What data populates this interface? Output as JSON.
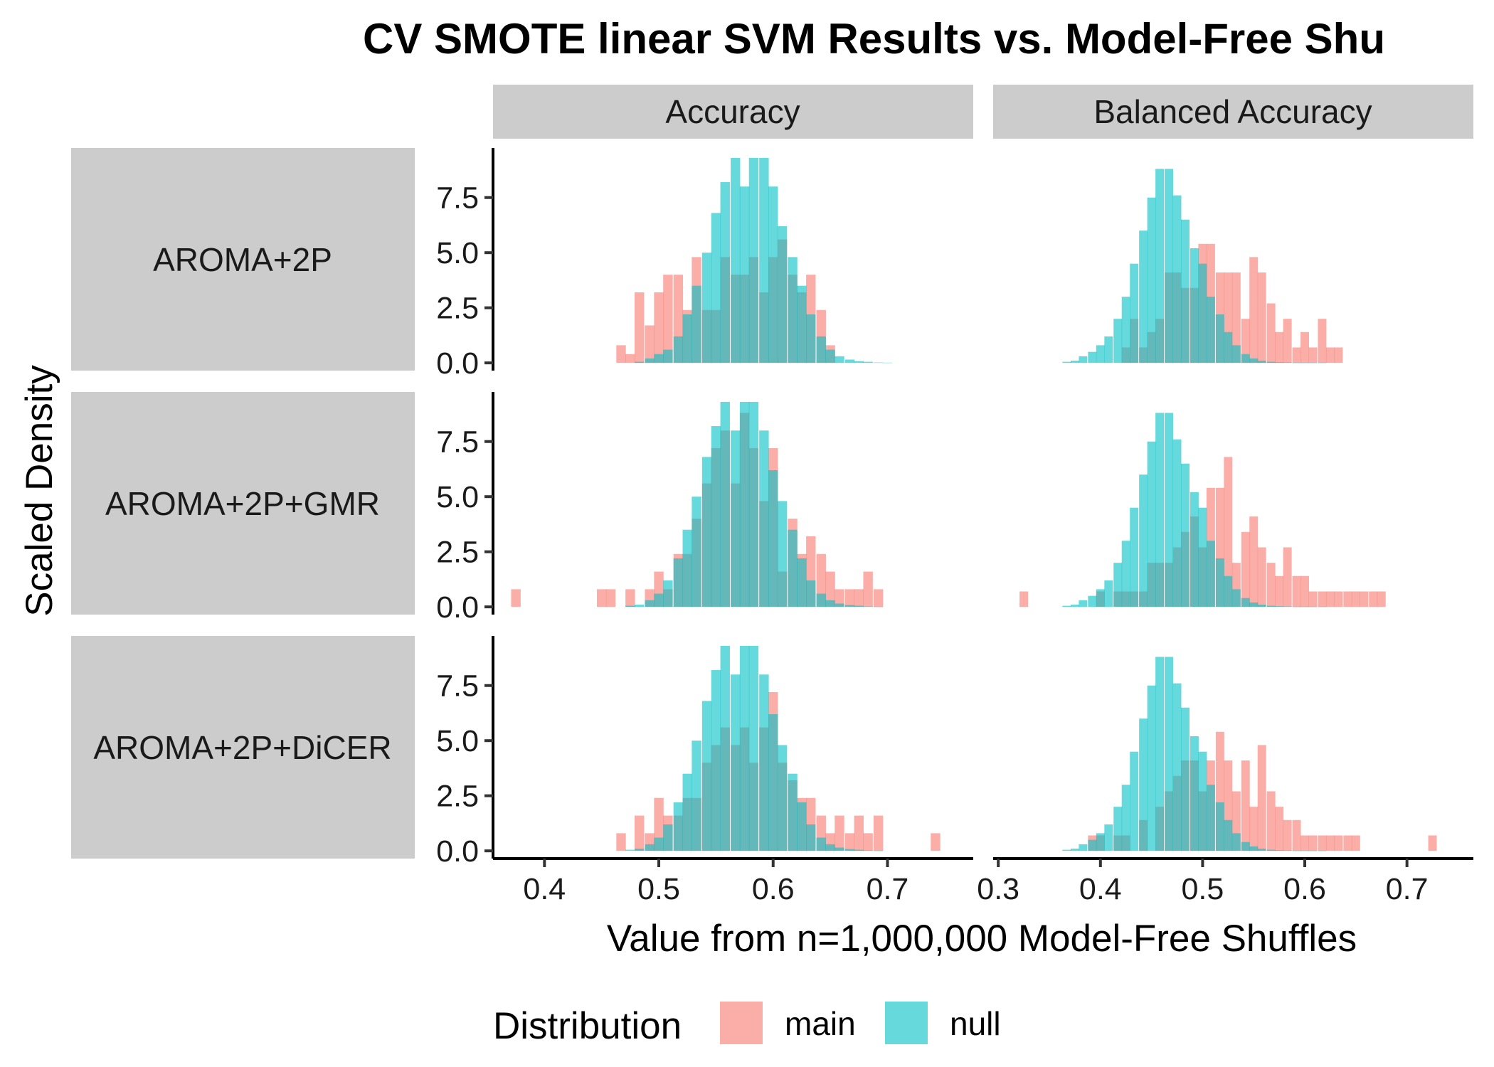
{
  "chart_data": {
    "type": "bar",
    "title": "CV SMOTE linear SVM Results vs. Model-Free Shu",
    "xlabel": "Value from n=1,000,000 Model-Free Shuffles",
    "ylabel": "Scaled Density",
    "legend": {
      "title": "Distribution",
      "position": "bottom",
      "entries": [
        {
          "name": "main",
          "color": "#F8766D"
        },
        {
          "name": "null",
          "color": "#00BFC4"
        }
      ]
    },
    "columns": [
      "Accuracy",
      "Balanced Accuracy"
    ],
    "rows": [
      "AROMA+2P",
      "AROMA+2P+GMR",
      "AROMA+2P+DiCER"
    ],
    "ylim": [
      -0.35,
      9.75
    ],
    "yticks": [
      0.0,
      2.5,
      5.0,
      7.5
    ],
    "ytick_labels": [
      "0.0",
      "2.5",
      "5.0",
      "7.5"
    ],
    "grid": false,
    "bin_width": 0.00833,
    "fill_opacity": 0.6,
    "panels": [
      {
        "row": "AROMA+2P",
        "column": "Accuracy",
        "xlim": [
          0.355,
          0.775
        ],
        "xticks": [
          0.4,
          0.5,
          0.6,
          0.7
        ],
        "xtick_labels": [
          "0.4",
          "0.5",
          "0.6",
          "0.7"
        ],
        "series": [
          {
            "name": "main",
            "x": [
              0.467,
              0.475,
              0.483,
              0.492,
              0.5,
              0.508,
              0.517,
              0.525,
              0.533,
              0.542,
              0.55,
              0.558,
              0.567,
              0.575,
              0.583,
              0.592,
              0.6,
              0.608,
              0.617,
              0.625,
              0.633,
              0.642,
              0.65
            ],
            "values": [
              0.8,
              0.4,
              3.2,
              1.7,
              3.2,
              4.0,
              4.0,
              2.4,
              4.8,
              2.4,
              2.4,
              4.8,
              4.0,
              4.0,
              4.8,
              3.2,
              4.8,
              5.6,
              4.0,
              3.2,
              4.0,
              2.4,
              0.8
            ]
          },
          {
            "name": "null",
            "x": [
              0.483,
              0.492,
              0.5,
              0.508,
              0.517,
              0.525,
              0.533,
              0.542,
              0.55,
              0.558,
              0.567,
              0.575,
              0.583,
              0.592,
              0.6,
              0.608,
              0.617,
              0.625,
              0.633,
              0.642,
              0.65,
              0.658,
              0.667,
              0.675,
              0.683,
              0.692,
              0.7
            ],
            "values": [
              0.05,
              0.2,
              0.4,
              0.6,
              1.2,
              2.2,
              3.5,
              5.0,
              6.8,
              8.2,
              9.3,
              8.0,
              9.3,
              9.3,
              8.0,
              6.2,
              4.8,
              3.5,
              2.2,
              1.2,
              0.6,
              0.3,
              0.15,
              0.08,
              0.05,
              0.02,
              0.01
            ]
          }
        ]
      },
      {
        "row": "AROMA+2P",
        "column": "Balanced Accuracy",
        "xlim": [
          0.295,
          0.765
        ],
        "xticks": [
          0.3,
          0.4,
          0.5,
          0.6,
          0.7
        ],
        "xtick_labels": [
          "0.3",
          "0.4",
          "0.5",
          "0.6",
          "0.7"
        ],
        "series": [
          {
            "name": "main",
            "x": [
              0.425,
              0.433,
              0.442,
              0.45,
              0.458,
              0.467,
              0.475,
              0.483,
              0.492,
              0.5,
              0.508,
              0.517,
              0.525,
              0.533,
              0.542,
              0.55,
              0.558,
              0.567,
              0.575,
              0.583,
              0.592,
              0.6,
              0.608,
              0.617,
              0.625,
              0.633
            ],
            "values": [
              0.7,
              2.0,
              0.7,
              1.4,
              2.0,
              4.1,
              4.1,
              3.4,
              3.4,
              5.4,
              5.4,
              4.1,
              4.1,
              4.1,
              2.0,
              4.8,
              4.1,
              2.7,
              1.4,
              2.0,
              0.7,
              1.4,
              0.7,
              2.0,
              0.7,
              0.7
            ]
          },
          {
            "name": "null",
            "x": [
              0.367,
              0.375,
              0.383,
              0.392,
              0.4,
              0.408,
              0.417,
              0.425,
              0.433,
              0.442,
              0.45,
              0.458,
              0.467,
              0.475,
              0.483,
              0.492,
              0.5,
              0.508,
              0.517,
              0.525,
              0.533,
              0.542,
              0.55,
              0.558,
              0.567,
              0.575,
              0.583,
              0.592,
              0.6,
              0.608,
              0.617
            ],
            "values": [
              0.05,
              0.1,
              0.3,
              0.5,
              0.8,
              1.2,
              2.0,
              3.0,
              4.5,
              6.0,
              7.5,
              8.8,
              8.8,
              7.6,
              6.5,
              5.2,
              4.5,
              3.0,
              2.2,
              1.4,
              0.8,
              0.4,
              0.2,
              0.1,
              0.05,
              0.03,
              0.02,
              0.01,
              0.01,
              0.01,
              0.01
            ]
          }
        ]
      },
      {
        "row": "AROMA+2P+GMR",
        "column": "Accuracy",
        "xlim": [
          0.355,
          0.775
        ],
        "xticks": [
          0.4,
          0.5,
          0.6,
          0.7
        ],
        "xtick_labels": [
          "0.4",
          "0.5",
          "0.6",
          "0.7"
        ],
        "series": [
          {
            "name": "main",
            "x": [
              0.375,
              0.45,
              0.458,
              0.475,
              0.492,
              0.5,
              0.508,
              0.517,
              0.525,
              0.533,
              0.542,
              0.55,
              0.558,
              0.567,
              0.575,
              0.583,
              0.592,
              0.6,
              0.608,
              0.617,
              0.625,
              0.633,
              0.642,
              0.65,
              0.658,
              0.667,
              0.675,
              0.683,
              0.692
            ],
            "values": [
              0.8,
              0.8,
              0.8,
              0.8,
              0.8,
              1.6,
              0.8,
              2.4,
              2.4,
              4.0,
              5.6,
              7.2,
              8.0,
              5.6,
              8.8,
              7.2,
              4.8,
              7.2,
              1.6,
              4.0,
              2.4,
              3.2,
              2.4,
              1.6,
              0.8,
              0.8,
              0.8,
              1.6,
              0.8
            ]
          },
          {
            "name": "null",
            "x": [
              0.475,
              0.483,
              0.492,
              0.5,
              0.508,
              0.517,
              0.525,
              0.533,
              0.542,
              0.55,
              0.558,
              0.567,
              0.575,
              0.583,
              0.592,
              0.6,
              0.608,
              0.617,
              0.625,
              0.633,
              0.642,
              0.65,
              0.658,
              0.667,
              0.675,
              0.683,
              0.692
            ],
            "values": [
              0.05,
              0.1,
              0.3,
              0.6,
              1.2,
              2.2,
              3.5,
              5.0,
              6.8,
              8.2,
              9.3,
              8.0,
              9.3,
              9.3,
              8.0,
              6.2,
              4.8,
              3.5,
              2.2,
              1.2,
              0.6,
              0.3,
              0.15,
              0.08,
              0.05,
              0.02,
              0.01
            ]
          }
        ]
      },
      {
        "row": "AROMA+2P+GMR",
        "column": "Balanced Accuracy",
        "xlim": [
          0.295,
          0.765
        ],
        "xticks": [
          0.3,
          0.4,
          0.5,
          0.6,
          0.7
        ],
        "xtick_labels": [
          "0.3",
          "0.4",
          "0.5",
          "0.6",
          "0.7"
        ],
        "series": [
          {
            "name": "main",
            "x": [
              0.325,
              0.4,
              0.417,
              0.425,
              0.433,
              0.442,
              0.45,
              0.458,
              0.467,
              0.475,
              0.483,
              0.492,
              0.5,
              0.508,
              0.517,
              0.525,
              0.533,
              0.542,
              0.55,
              0.558,
              0.567,
              0.575,
              0.583,
              0.592,
              0.6,
              0.608,
              0.617,
              0.625,
              0.633,
              0.642,
              0.65,
              0.658,
              0.667,
              0.675
            ],
            "values": [
              0.7,
              0.7,
              0.7,
              0.7,
              0.7,
              0.7,
              2.0,
              2.0,
              2.0,
              2.7,
              3.4,
              4.1,
              2.7,
              5.4,
              5.4,
              6.8,
              2.0,
              3.4,
              4.1,
              2.7,
              2.0,
              1.4,
              2.7,
              1.4,
              1.4,
              0.7,
              0.7,
              0.7,
              0.7,
              0.7,
              0.7,
              0.7,
              0.7,
              0.7
            ]
          },
          {
            "name": "null",
            "x": [
              0.367,
              0.375,
              0.383,
              0.392,
              0.4,
              0.408,
              0.417,
              0.425,
              0.433,
              0.442,
              0.45,
              0.458,
              0.467,
              0.475,
              0.483,
              0.492,
              0.5,
              0.508,
              0.517,
              0.525,
              0.533,
              0.542,
              0.55,
              0.558,
              0.567,
              0.575,
              0.583,
              0.592,
              0.6,
              0.608,
              0.617
            ],
            "values": [
              0.05,
              0.1,
              0.3,
              0.5,
              0.8,
              1.2,
              2.0,
              3.0,
              4.5,
              6.0,
              7.5,
              8.8,
              8.8,
              7.6,
              6.5,
              5.2,
              4.5,
              3.0,
              2.2,
              1.4,
              0.8,
              0.4,
              0.2,
              0.1,
              0.05,
              0.03,
              0.02,
              0.01,
              0.01,
              0.01,
              0.01
            ]
          }
        ]
      },
      {
        "row": "AROMA+2P+DiCER",
        "column": "Accuracy",
        "xlim": [
          0.355,
          0.775
        ],
        "xticks": [
          0.4,
          0.5,
          0.6,
          0.7
        ],
        "xtick_labels": [
          "0.4",
          "0.5",
          "0.6",
          "0.7"
        ],
        "series": [
          {
            "name": "main",
            "x": [
              0.467,
              0.483,
              0.492,
              0.5,
              0.508,
              0.517,
              0.525,
              0.533,
              0.542,
              0.55,
              0.558,
              0.567,
              0.575,
              0.583,
              0.592,
              0.6,
              0.608,
              0.617,
              0.625,
              0.633,
              0.642,
              0.65,
              0.658,
              0.667,
              0.675,
              0.683,
              0.692,
              0.742
            ],
            "values": [
              0.8,
              1.6,
              0.8,
              2.4,
              1.6,
              1.6,
              2.4,
              2.4,
              4.0,
              4.8,
              5.6,
              4.8,
              5.6,
              4.0,
              5.6,
              7.2,
              4.0,
              3.2,
              2.4,
              2.4,
              1.6,
              0.8,
              1.6,
              0.8,
              1.6,
              0.8,
              1.6,
              0.8
            ]
          },
          {
            "name": "null",
            "x": [
              0.475,
              0.483,
              0.492,
              0.5,
              0.508,
              0.517,
              0.525,
              0.533,
              0.542,
              0.55,
              0.558,
              0.567,
              0.575,
              0.583,
              0.592,
              0.6,
              0.608,
              0.617,
              0.625,
              0.633,
              0.642,
              0.65,
              0.658,
              0.667,
              0.675,
              0.683,
              0.692
            ],
            "values": [
              0.05,
              0.1,
              0.3,
              0.6,
              1.2,
              2.2,
              3.5,
              5.0,
              6.8,
              8.2,
              9.3,
              8.0,
              9.3,
              9.3,
              8.0,
              6.2,
              4.8,
              3.5,
              2.2,
              1.2,
              0.6,
              0.3,
              0.15,
              0.08,
              0.05,
              0.02,
              0.01
            ]
          }
        ]
      },
      {
        "row": "AROMA+2P+DiCER",
        "column": "Balanced Accuracy",
        "xlim": [
          0.295,
          0.765
        ],
        "xticks": [
          0.3,
          0.4,
          0.5,
          0.6,
          0.7
        ],
        "xtick_labels": [
          "0.3",
          "0.4",
          "0.5",
          "0.6",
          "0.7"
        ],
        "series": [
          {
            "name": "main",
            "x": [
              0.392,
              0.4,
              0.417,
              0.425,
              0.442,
              0.458,
              0.467,
              0.475,
              0.483,
              0.492,
              0.5,
              0.508,
              0.517,
              0.525,
              0.533,
              0.542,
              0.55,
              0.558,
              0.567,
              0.575,
              0.583,
              0.592,
              0.6,
              0.608,
              0.617,
              0.625,
              0.633,
              0.642,
              0.65,
              0.725
            ],
            "values": [
              0.7,
              0.7,
              0.7,
              0.7,
              1.4,
              2.0,
              2.7,
              3.4,
              4.1,
              4.1,
              2.7,
              4.1,
              5.4,
              4.1,
              2.7,
              4.1,
              2.0,
              4.8,
              2.7,
              2.0,
              1.4,
              1.4,
              0.7,
              0.7,
              0.7,
              0.7,
              0.7,
              0.7,
              0.7,
              0.7
            ]
          },
          {
            "name": "null",
            "x": [
              0.367,
              0.375,
              0.383,
              0.392,
              0.4,
              0.408,
              0.417,
              0.425,
              0.433,
              0.442,
              0.45,
              0.458,
              0.467,
              0.475,
              0.483,
              0.492,
              0.5,
              0.508,
              0.517,
              0.525,
              0.533,
              0.542,
              0.55,
              0.558,
              0.567,
              0.575,
              0.583,
              0.592,
              0.6,
              0.608,
              0.617
            ],
            "values": [
              0.05,
              0.1,
              0.3,
              0.5,
              0.8,
              1.2,
              2.0,
              3.0,
              4.5,
              6.0,
              7.5,
              8.8,
              8.8,
              7.6,
              6.5,
              5.2,
              4.5,
              3.0,
              2.2,
              1.4,
              0.8,
              0.4,
              0.2,
              0.1,
              0.05,
              0.03,
              0.02,
              0.01,
              0.01,
              0.01,
              0.01
            ]
          }
        ]
      }
    ]
  }
}
